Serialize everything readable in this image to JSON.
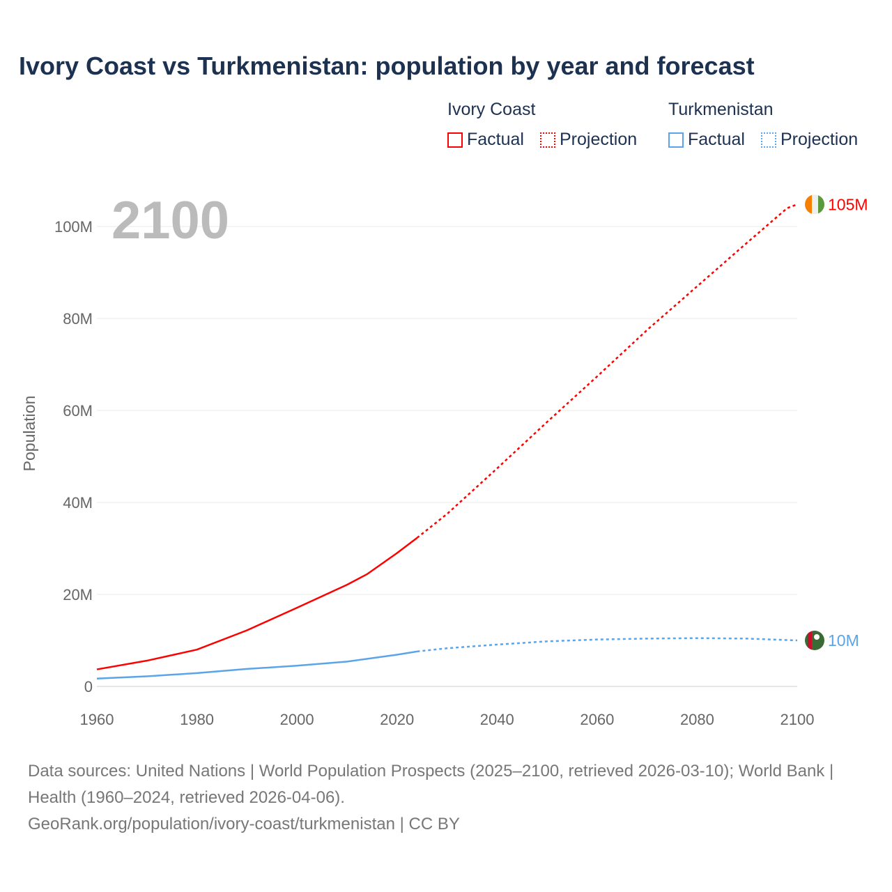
{
  "chart_data": {
    "type": "line",
    "title": "Ivory Coast vs Turkmenistan: population by year and forecast",
    "ylabel": "Population",
    "xlabel": "",
    "xlim": [
      1960,
      2100
    ],
    "ylim": [
      0,
      105000000
    ],
    "x_ticks": [
      1960,
      1980,
      2000,
      2020,
      2040,
      2060,
      2080,
      2100
    ],
    "x_tick_labels": [
      "1960",
      "1980",
      "2000",
      "2020",
      "2040",
      "2060",
      "2080",
      "2100"
    ],
    "y_ticks": [
      0,
      20000000,
      40000000,
      60000000,
      80000000,
      100000000
    ],
    "y_tick_labels": [
      "0",
      "20M",
      "40M",
      "60M",
      "80M",
      "100M"
    ],
    "grid": true,
    "year_overlay": "2100",
    "legend": {
      "placement": "top-right",
      "groups": [
        {
          "name": "Ivory Coast",
          "factual": "Factual",
          "projection": "Projection"
        },
        {
          "name": "Turkmenistan",
          "factual": "Factual",
          "projection": "Projection"
        }
      ]
    },
    "series": [
      {
        "name": "Ivory Coast",
        "color": "#ff0000",
        "end_label": "105M",
        "factual": {
          "x": [
            1960,
            1970,
            1980,
            1990,
            2000,
            2010,
            2014,
            2020,
            2024
          ],
          "y": [
            3.7,
            5.6,
            8.0,
            12.2,
            17.1,
            22.1,
            24.4,
            29.0,
            32.3
          ]
        },
        "projection": {
          "x": [
            2024,
            2030,
            2040,
            2050,
            2060,
            2070,
            2080,
            2090,
            2098,
            2100
          ],
          "y": [
            32.3,
            37.5,
            47.4,
            57.5,
            67.4,
            77.5,
            87.0,
            96.5,
            104.0,
            104.8
          ]
        }
      },
      {
        "name": "Turkmenistan",
        "color": "#5ba4e8",
        "end_label": "10M",
        "factual": {
          "x": [
            1960,
            1970,
            1980,
            1990,
            2000,
            2010,
            2020,
            2024
          ],
          "y": [
            1.7,
            2.2,
            2.9,
            3.8,
            4.5,
            5.4,
            6.9,
            7.6
          ]
        },
        "projection": {
          "x": [
            2024,
            2030,
            2040,
            2050,
            2060,
            2070,
            2080,
            2090,
            2100
          ],
          "y": [
            7.6,
            8.3,
            9.1,
            9.8,
            10.2,
            10.4,
            10.5,
            10.4,
            10.0
          ]
        }
      }
    ]
  },
  "footer": {
    "line1": "Data sources: United Nations | World Population Prospects (2025–2100, retrieved 2026-03-10); World Bank | Health (1960–2024, retrieved 2026-04-06).",
    "line2": "GeoRank.org/population/ivory-coast/turkmenistan | CC BY"
  }
}
